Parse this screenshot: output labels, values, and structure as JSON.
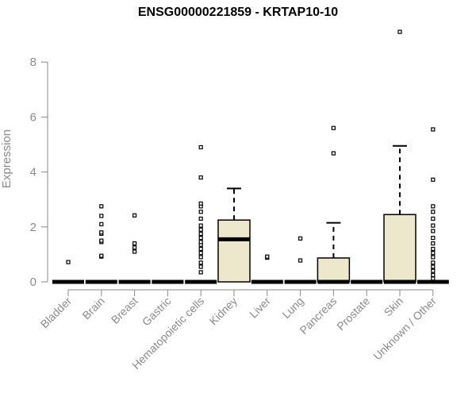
{
  "chart_data": {
    "type": "box",
    "title": "ENSG00000221859 - KRTAP10-10",
    "xlabel": "",
    "ylabel": "Expression",
    "ylim": [
      0,
      9.2
    ],
    "yticks": [
      0,
      2,
      4,
      6,
      8
    ],
    "box_fill": "#ede7cc",
    "categories": [
      "Bladder",
      "Brain",
      "Breast",
      "Gastric",
      "Hematopoietic cells",
      "Kidney",
      "Liver",
      "Lung",
      "Pancreas",
      "Prostate",
      "Skin",
      "Unknown / Other"
    ],
    "boxes": [
      {
        "q1": 0,
        "median": 0,
        "q3": 0,
        "whisker_low": 0,
        "whisker_high": 0,
        "outliers": [
          0.72
        ]
      },
      {
        "q1": 0,
        "median": 0,
        "q3": 0,
        "whisker_low": 0,
        "whisker_high": 0,
        "outliers": [
          0.92,
          0.95,
          1.45,
          1.5,
          1.75,
          1.8,
          2.1,
          2.4,
          2.75
        ]
      },
      {
        "q1": 0,
        "median": 0,
        "q3": 0,
        "whisker_low": 0,
        "whisker_high": 0,
        "outliers": [
          1.1,
          1.25,
          1.4,
          2.42
        ]
      },
      {
        "q1": 0,
        "median": 0,
        "q3": 0,
        "whisker_low": 0,
        "whisker_high": 0,
        "outliers": []
      },
      {
        "q1": 0,
        "median": 0,
        "q3": 0,
        "whisker_low": 0,
        "whisker_high": 0,
        "outliers": [
          0.35,
          0.55,
          0.7,
          0.9,
          1.05,
          1.2,
          1.35,
          1.45,
          1.6,
          1.75,
          1.9,
          2.05,
          2.3,
          2.55,
          2.75,
          2.85,
          3.8,
          4.9
        ]
      },
      {
        "q1": 0,
        "median": 1.55,
        "q3": 2.25,
        "whisker_low": 0,
        "whisker_high": 3.4,
        "outliers": []
      },
      {
        "q1": 0,
        "median": 0,
        "q3": 0,
        "whisker_low": 0,
        "whisker_high": 0,
        "outliers": [
          0.88,
          0.92
        ]
      },
      {
        "q1": 0,
        "median": 0,
        "q3": 0,
        "whisker_low": 0,
        "whisker_high": 0,
        "outliers": [
          0.78,
          1.58
        ]
      },
      {
        "q1": 0,
        "median": 0,
        "q3": 0.87,
        "whisker_low": 0,
        "whisker_high": 2.15,
        "outliers": [
          4.68,
          5.6
        ]
      },
      {
        "q1": 0,
        "median": 0,
        "q3": 0,
        "whisker_low": 0,
        "whisker_high": 0,
        "outliers": []
      },
      {
        "q1": 0,
        "median": 0,
        "q3": 2.45,
        "whisker_low": 0,
        "whisker_high": 4.95,
        "outliers": [
          9.1
        ]
      },
      {
        "q1": 0,
        "median": 0,
        "q3": 0,
        "whisker_low": 0,
        "whisker_high": 0,
        "outliers": [
          0.12,
          0.25,
          0.4,
          0.55,
          0.7,
          0.9,
          1.05,
          1.2,
          1.4,
          1.6,
          1.85,
          2.05,
          2.3,
          2.55,
          2.75,
          3.72,
          5.55
        ]
      }
    ]
  }
}
